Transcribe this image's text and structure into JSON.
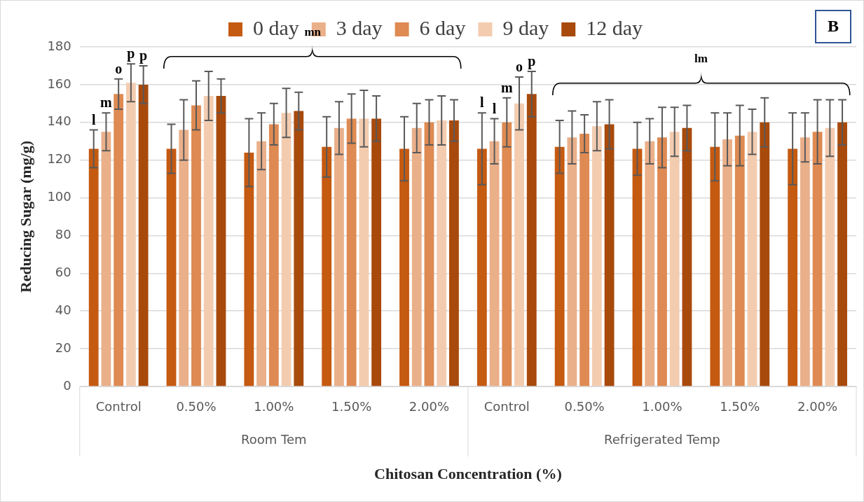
{
  "chart_data": {
    "type": "bar",
    "xlabel": "Chitosan Concentration (%)",
    "ylabel": "Reducing Sugar (mg/g)",
    "categories": [
      "Control",
      "0.50%",
      "1.00%",
      "1.50%",
      "2.00%",
      "Control",
      "0.50%",
      "1.00%",
      "1.50%",
      "2.00%"
    ],
    "series": [
      {
        "name": "0 day",
        "color": "#c55a11",
        "values": [
          126,
          126,
          124,
          127,
          126,
          126,
          127,
          126,
          127,
          126
        ],
        "errors": [
          10,
          13,
          18,
          16,
          17,
          19,
          14,
          14,
          18,
          19
        ],
        "value_labels": [
          "l",
          null,
          null,
          null,
          null,
          "l",
          null,
          null,
          null,
          null
        ]
      },
      {
        "name": "3 day",
        "color": "#eab08a",
        "values": [
          135,
          136,
          130,
          137,
          137,
          130,
          132,
          130,
          131,
          132
        ],
        "errors": [
          10,
          16,
          15,
          14,
          13,
          12,
          14,
          12,
          14,
          13
        ],
        "value_labels": [
          "m",
          null,
          null,
          null,
          null,
          "l",
          null,
          null,
          null,
          null
        ]
      },
      {
        "name": "6 day",
        "color": "#de8a52",
        "values": [
          155,
          149,
          139,
          142,
          140,
          140,
          134,
          132,
          133,
          135
        ],
        "errors": [
          8,
          13,
          11,
          13,
          12,
          13,
          10,
          16,
          16,
          17
        ],
        "value_labels": [
          "o",
          null,
          null,
          null,
          null,
          "m",
          null,
          null,
          null,
          null
        ]
      },
      {
        "name": "9 day",
        "color": "#f3ccb0",
        "values": [
          161,
          154,
          145,
          142,
          141,
          150,
          138,
          135,
          135,
          137
        ],
        "errors": [
          10,
          13,
          13,
          15,
          13,
          14,
          13,
          13,
          12,
          15
        ],
        "value_labels": [
          "p",
          null,
          null,
          null,
          null,
          "o",
          null,
          null,
          null,
          null
        ]
      },
      {
        "name": "12 day",
        "color": "#a84a0c",
        "values": [
          160,
          154,
          146,
          142,
          141,
          155,
          139,
          137,
          140,
          140
        ],
        "errors": [
          10,
          9,
          10,
          12,
          11,
          12,
          13,
          12,
          13,
          12
        ],
        "value_labels": [
          "p",
          null,
          null,
          null,
          null,
          "p",
          null,
          null,
          null,
          null
        ]
      }
    ],
    "ylim": [
      0,
      180
    ],
    "yticks": [
      0,
      20,
      40,
      60,
      80,
      100,
      120,
      140,
      160,
      180
    ],
    "grid": "y",
    "legend": "top",
    "annotations": [
      "mn",
      "lm",
      "Room Tem",
      "Refrigerated Temp",
      "B"
    ]
  }
}
